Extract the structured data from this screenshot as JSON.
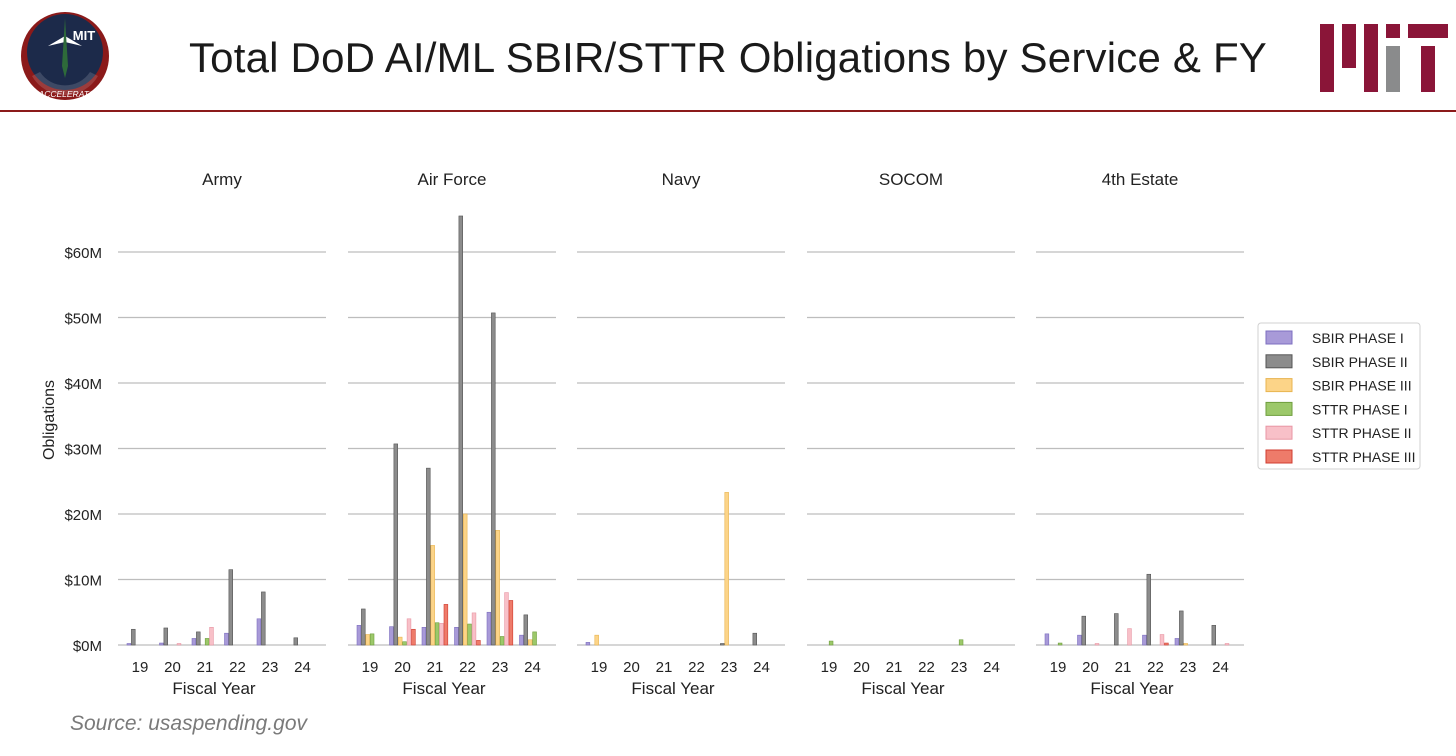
{
  "header": {
    "title": "Total DoD AI/ML SBIR/STTR Obligations by Service & FY",
    "logo_left_text": "MIT",
    "logo_left_ring_text": "AI ACCELERATOR"
  },
  "source": "Source: usaspending.gov",
  "colors": {
    "accent": "#8b1a1a",
    "mit_red": "#8a1538",
    "mit_gray": "#8a8b8c"
  },
  "chart_data": {
    "type": "bar",
    "ylabel": "Obligations",
    "xlabel": "Fiscal Year",
    "ylim": [
      0,
      66
    ],
    "yticks": [
      {
        "value": 0,
        "label": "$0M"
      },
      {
        "value": 10,
        "label": "$10M"
      },
      {
        "value": 20,
        "label": "$20M"
      },
      {
        "value": 30,
        "label": "$30M"
      },
      {
        "value": 40,
        "label": "$40M"
      },
      {
        "value": 50,
        "label": "$50M"
      },
      {
        "value": 60,
        "label": "$60M"
      }
    ],
    "grid": true,
    "legend_position": "right",
    "categories": [
      "19",
      "20",
      "21",
      "22",
      "23",
      "24"
    ],
    "series_meta": [
      {
        "name": "SBIR PHASE I",
        "color": "#a89ad8",
        "stroke": "#7d6fc0"
      },
      {
        "name": "SBIR PHASE II",
        "color": "#8c8c8c",
        "stroke": "#555555"
      },
      {
        "name": "SBIR PHASE III",
        "color": "#fcd488",
        "stroke": "#e8b450"
      },
      {
        "name": "STTR PHASE I",
        "color": "#9cc86a",
        "stroke": "#6f9e3e"
      },
      {
        "name": "STTR PHASE II",
        "color": "#f8c0c8",
        "stroke": "#e896a4"
      },
      {
        "name": "STTR PHASE III",
        "color": "#ee7b6a",
        "stroke": "#d03c30"
      }
    ],
    "panels": [
      {
        "title": "Army",
        "values": [
          [
            0.1,
            0.3,
            1.0,
            1.8,
            4.0,
            0
          ],
          [
            2.4,
            2.6,
            2.0,
            11.5,
            8.1,
            1.1
          ],
          [
            0,
            0,
            0,
            0,
            0,
            0
          ],
          [
            0,
            0,
            1.0,
            0,
            0,
            0
          ],
          [
            0,
            0.1,
            2.7,
            0,
            0,
            0
          ],
          [
            0,
            0,
            0,
            0,
            0,
            0
          ]
        ]
      },
      {
        "title": "Air Force",
        "values": [
          [
            3.0,
            2.8,
            2.7,
            2.7,
            5.0,
            1.5
          ],
          [
            5.5,
            30.7,
            27.0,
            65.5,
            50.7,
            4.6
          ],
          [
            1.6,
            1.2,
            15.2,
            20.0,
            17.5,
            0.8
          ],
          [
            1.7,
            0.5,
            3.4,
            3.2,
            1.3,
            2.0
          ],
          [
            0,
            4.0,
            3.3,
            4.9,
            8.0,
            0
          ],
          [
            0,
            2.4,
            6.2,
            0.7,
            6.8,
            0
          ]
        ]
      },
      {
        "title": "Navy",
        "values": [
          [
            0.4,
            0,
            0,
            0,
            0,
            0
          ],
          [
            0,
            0,
            0,
            0,
            0.2,
            1.8
          ],
          [
            1.5,
            0,
            0,
            0,
            23.3,
            0
          ],
          [
            0,
            0,
            0,
            0,
            0,
            0
          ],
          [
            0,
            0,
            0,
            0,
            0,
            0
          ],
          [
            0,
            0,
            0,
            0,
            0,
            0
          ]
        ]
      },
      {
        "title": "SOCOM",
        "values": [
          [
            0,
            0,
            0,
            0,
            0,
            0
          ],
          [
            0,
            0,
            0,
            0,
            0,
            0
          ],
          [
            0,
            0,
            0,
            0,
            0,
            0
          ],
          [
            0.6,
            0,
            0,
            0,
            0.8,
            0
          ],
          [
            0,
            0,
            0,
            0,
            0,
            0
          ],
          [
            0,
            0,
            0,
            0,
            0,
            0
          ]
        ]
      },
      {
        "title": "4th Estate",
        "values": [
          [
            1.7,
            1.5,
            0,
            1.5,
            1.0,
            0
          ],
          [
            0,
            4.4,
            4.8,
            10.8,
            5.2,
            3.0
          ],
          [
            0,
            0,
            0,
            0,
            0.2,
            0
          ],
          [
            0.3,
            0,
            0,
            0,
            0,
            0
          ],
          [
            0,
            0.2,
            2.5,
            1.6,
            0,
            0.2
          ],
          [
            0,
            0,
            0,
            0.3,
            0,
            0
          ]
        ]
      }
    ]
  }
}
